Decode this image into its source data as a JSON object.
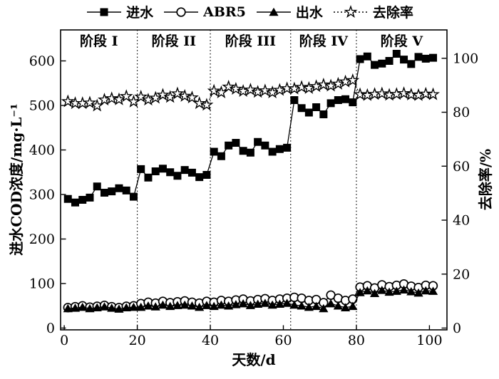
{
  "figure": {
    "background": "#ffffff",
    "ink_color": "#000000"
  },
  "chart_data": {
    "type": "line",
    "title": "",
    "legend_position": "top",
    "grid": "off",
    "x_axis": {
      "label": "天数/d",
      "min": 0,
      "max": 104,
      "ticks": [
        0,
        20,
        40,
        60,
        80,
        100
      ]
    },
    "left_axis": {
      "label": "进水COD浓度/mg·L⁻¹",
      "min": 0,
      "max": 670,
      "ticks": [
        0,
        100,
        200,
        300,
        400,
        500,
        600
      ]
    },
    "right_axis": {
      "label": "去除率/%",
      "min": 0,
      "max": 111,
      "ticks": [
        0,
        20,
        40,
        60,
        80,
        100
      ]
    },
    "stages": {
      "labels": [
        "阶段 I",
        "阶段 II",
        "阶段 III",
        "阶段 IV",
        "阶段 V"
      ],
      "boundaries_day": [
        20,
        40,
        62,
        80
      ]
    },
    "days": [
      1,
      3,
      5,
      7,
      9,
      11,
      13,
      15,
      17,
      19,
      21,
      23,
      25,
      27,
      29,
      31,
      33,
      35,
      37,
      39,
      41,
      43,
      45,
      47,
      49,
      51,
      53,
      55,
      57,
      59,
      61,
      63,
      65,
      67,
      69,
      71,
      73,
      75,
      77,
      79,
      81,
      83,
      85,
      87,
      89,
      91,
      93,
      95,
      97,
      99,
      101
    ],
    "series": [
      {
        "id": "influent",
        "name": "进水",
        "axis": "left",
        "marker": "filled-square",
        "line_style": "solid",
        "values": [
          290,
          282,
          288,
          293,
          318,
          304,
          307,
          314,
          309,
          295,
          357,
          338,
          352,
          358,
          350,
          342,
          355,
          349,
          339,
          344,
          396,
          386,
          410,
          416,
          398,
          394,
          418,
          410,
          396,
          402,
          405,
          512,
          494,
          484,
          496,
          480,
          505,
          512,
          514,
          507,
          604,
          610,
          591,
          594,
          600,
          616,
          603,
          593,
          609,
          605,
          607
        ]
      },
      {
        "id": "abr5",
        "name": "ABR5",
        "axis": "left",
        "marker": "open-circle",
        "line_style": "solid",
        "values": [
          46,
          48,
          50,
          47,
          49,
          51,
          48,
          46,
          49,
          50,
          55,
          58,
          56,
          60,
          57,
          59,
          61,
          58,
          56,
          60,
          58,
          62,
          60,
          63,
          65,
          61,
          64,
          66,
          62,
          65,
          67,
          69,
          67,
          62,
          64,
          57,
          74,
          67,
          62,
          65,
          92,
          95,
          90,
          97,
          93,
          96,
          99,
          94,
          91,
          96,
          95
        ]
      },
      {
        "id": "effluent",
        "name": "出水",
        "axis": "left",
        "marker": "filled-triangle",
        "line_style": "solid",
        "values": [
          44,
          45,
          47,
          44,
          46,
          48,
          45,
          43,
          46,
          47,
          47,
          50,
          48,
          52,
          49,
          51,
          52,
          50,
          47,
          51,
          49,
          52,
          50,
          53,
          55,
          51,
          54,
          56,
          52,
          54,
          56,
          52,
          50,
          47,
          49,
          44,
          55,
          50,
          46,
          49,
          80,
          84,
          78,
          85,
          81,
          83,
          86,
          82,
          79,
          84,
          83
        ]
      },
      {
        "id": "removal-rate",
        "name": "去除率",
        "axis": "right",
        "marker": "open-star",
        "line_style": "dash-dot",
        "values": [
          84.0,
          83.3,
          83.3,
          83.5,
          82.4,
          84.6,
          85.1,
          84.7,
          85.9,
          83.9,
          85.7,
          84.6,
          85.3,
          86.4,
          85.6,
          86.9,
          86.0,
          85.4,
          83.3,
          82.7,
          87.9,
          87.3,
          89.4,
          88.6,
          87.8,
          88.3,
          87.5,
          88.0,
          87.3,
          88.2,
          88.8,
          88.7,
          89.3,
          88.9,
          89.6,
          90.2,
          89.8,
          90.5,
          91.3,
          91.8,
          86.6,
          86.3,
          86.7,
          86.9,
          86.4,
          86.7,
          87.0,
          86.5,
          86.3,
          86.8,
          86.6
        ]
      }
    ]
  }
}
